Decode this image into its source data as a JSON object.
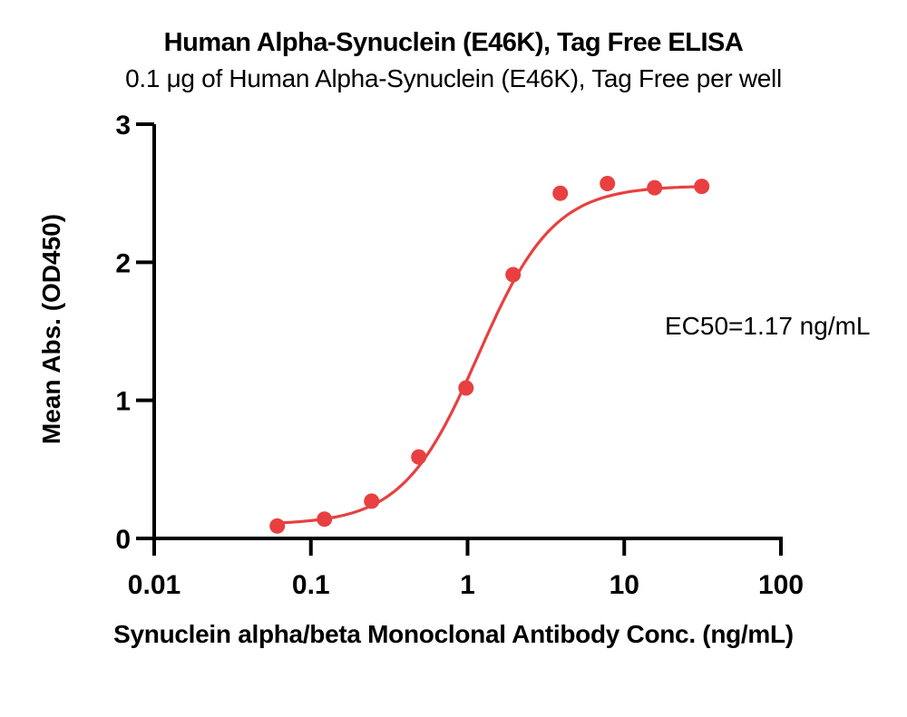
{
  "colors": {
    "series": "#e84040",
    "axis": "#000000",
    "text": "#000000",
    "background": "#ffffff"
  },
  "chart_data": {
    "type": "scatter",
    "title": "Human Alpha-Synuclein (E46K), Tag Free ELISA",
    "subtitle": "0.1 μg of Human Alpha-Synuclein (E46K), Tag Free per well",
    "xlabel": "Synuclein alpha/beta Monoclonal Antibody Conc. (ng/mL)",
    "ylabel": "Mean Abs. (OD450)",
    "annotation": "EC50=1.17 ng/mL",
    "x_scale": "log10",
    "xlim": [
      0.01,
      100
    ],
    "ylim": [
      0,
      3
    ],
    "grid": false,
    "legend": "none",
    "x_ticks": [
      0.01,
      0.1,
      1,
      10,
      100
    ],
    "x_tick_labels": [
      "0.01",
      "0.1",
      "1",
      "10",
      "100"
    ],
    "y_ticks": [
      0,
      1,
      2,
      3
    ],
    "y_tick_labels": [
      "0",
      "1",
      "2",
      "3"
    ],
    "series": [
      {
        "name": "Mean Abs. (OD450)",
        "x": [
          0.061,
          0.122,
          0.244,
          0.488,
          0.977,
          1.953,
          3.906,
          7.813,
          15.625,
          31.25
        ],
        "y": [
          0.09,
          0.14,
          0.27,
          0.59,
          1.09,
          1.91,
          2.5,
          2.57,
          2.54,
          2.55
        ]
      }
    ],
    "fit_curve": {
      "model": "4PL",
      "bottom": 0.1,
      "top": 2.555,
      "ec50": 1.17,
      "hill": 1.8,
      "x_start": 0.058,
      "x_end": 31.5
    }
  }
}
